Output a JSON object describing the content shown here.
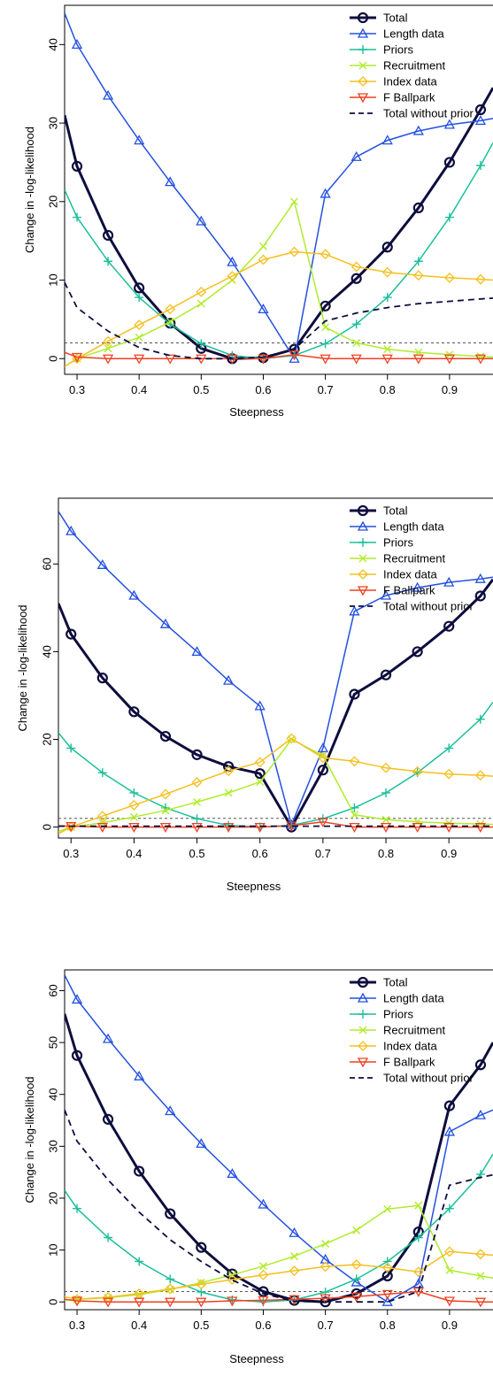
{
  "chart_data": [
    {
      "type": "line",
      "xlabel": "Steepness",
      "ylabel": "Change in -log-likelihood",
      "xlim": [
        0.28,
        0.97
      ],
      "ylim": [
        -2,
        45
      ],
      "xticks": [
        "0.3",
        "0.4",
        "0.5",
        "0.6",
        "0.7",
        "0.8",
        "0.9"
      ],
      "yticks": [
        "0",
        "10",
        "20",
        "30",
        "40"
      ],
      "reference_line": 2,
      "legend_position": "top-right",
      "x": [
        0.3,
        0.35,
        0.4,
        0.45,
        0.5,
        0.55,
        0.6,
        0.65,
        0.7,
        0.75,
        0.8,
        0.85,
        0.9,
        0.95
      ],
      "series": [
        {
          "name": "Total",
          "color": "#0d0d3d",
          "marker": "circle",
          "x0": 0.28,
          "y0": 31,
          "values": [
            24.5,
            15.7,
            9.0,
            4.5,
            1.3,
            0.0,
            0.1,
            1.2,
            6.7,
            10.2,
            14.2,
            19.2,
            25.0,
            31.7
          ],
          "x1": 0.97,
          "y1": 34.5
        },
        {
          "name": "Length data",
          "color": "#2450e0",
          "marker": "triangle-up",
          "x0": 0.28,
          "y0": 44,
          "values": [
            40.0,
            33.5,
            27.8,
            22.5,
            17.5,
            12.3,
            6.3,
            0.0,
            21.0,
            25.7,
            27.8,
            29.0,
            29.8,
            30.3
          ],
          "x1": 0.97,
          "y1": 30.6
        },
        {
          "name": "Priors",
          "color": "#1abf9a",
          "marker": "plus",
          "x0": 0.28,
          "y0": 21.5,
          "values": [
            18.0,
            12.4,
            7.8,
            4.4,
            1.9,
            0.4,
            0.0,
            0.4,
            1.9,
            4.4,
            7.8,
            12.4,
            18.0,
            24.6
          ],
          "x1": 0.97,
          "y1": 27.5
        },
        {
          "name": "Recruitment",
          "color": "#b0ec2c",
          "marker": "x",
          "x0": 0.28,
          "y0": -1.0,
          "values": [
            0.0,
            1.3,
            2.7,
            4.7,
            7.0,
            10.0,
            14.3,
            20.0,
            4.0,
            2.0,
            1.2,
            0.8,
            0.5,
            0.3
          ],
          "x1": 0.97,
          "y1": 0.2
        },
        {
          "name": "Index data",
          "color": "#f5bf1e",
          "marker": "diamond",
          "x0": 0.28,
          "y0": -1.0,
          "values": [
            0.0,
            2.2,
            4.3,
            6.3,
            8.5,
            10.5,
            12.6,
            13.6,
            13.3,
            11.7,
            11.0,
            10.6,
            10.3,
            10.1
          ],
          "x1": 0.97,
          "y1": 10.0
        },
        {
          "name": "F Ballpark",
          "color": "#ef4122",
          "marker": "triangle-down",
          "x0": 0.28,
          "y0": 0.8,
          "values": [
            0.2,
            0.0,
            0.0,
            0.0,
            0.0,
            0.0,
            0.0,
            0.5,
            0.0,
            0.0,
            0.0,
            0.0,
            0.0,
            0.0
          ],
          "x1": 0.97,
          "y1": 0.0
        },
        {
          "name": "Total without prior",
          "color": "#0d0d3d",
          "dashed": true,
          "x0": 0.28,
          "y0": 9.7,
          "values": [
            6.5,
            3.5,
            1.4,
            0.4,
            0.0,
            0.0,
            0.2,
            1.2,
            4.8,
            5.8,
            6.5,
            7.0,
            7.3,
            7.6
          ],
          "x1": 0.97,
          "y1": 7.7
        }
      ]
    },
    {
      "type": "line",
      "xlabel": "Steepness",
      "ylabel": "Change in -log-likelihood",
      "xlim": [
        0.28,
        0.97
      ],
      "ylim": [
        -2.5,
        75
      ],
      "xticks": [
        "0.3",
        "0.4",
        "0.5",
        "0.6",
        "0.7",
        "0.8",
        "0.9"
      ],
      "yticks": [
        "0",
        "20",
        "40",
        "60"
      ],
      "reference_line": 2,
      "legend_position": "top-right",
      "x": [
        0.3,
        0.35,
        0.4,
        0.45,
        0.5,
        0.55,
        0.6,
        0.65,
        0.7,
        0.75,
        0.8,
        0.85,
        0.9,
        0.95
      ],
      "series": [
        {
          "name": "Total",
          "color": "#0d0d3d",
          "marker": "circle",
          "x0": 0.28,
          "y0": 51,
          "values": [
            44.0,
            34.0,
            26.3,
            20.7,
            16.5,
            13.8,
            12.2,
            0.0,
            13.0,
            30.3,
            34.7,
            40.0,
            45.8,
            52.7
          ],
          "x1": 0.97,
          "y1": 56.5
        },
        {
          "name": "Length data",
          "color": "#2450e0",
          "marker": "triangle-up",
          "x0": 0.28,
          "y0": 72,
          "values": [
            67.5,
            59.8,
            52.8,
            46.3,
            40.0,
            33.4,
            27.6,
            0.5,
            18.0,
            49.2,
            52.8,
            54.6,
            55.8,
            56.6
          ],
          "x1": 0.97,
          "y1": 57.0
        },
        {
          "name": "Priors",
          "color": "#1abf9a",
          "marker": "plus",
          "x0": 0.28,
          "y0": 21.5,
          "values": [
            18.0,
            12.4,
            7.8,
            4.4,
            1.9,
            0.4,
            0.0,
            0.4,
            1.9,
            4.4,
            7.8,
            12.4,
            18.0,
            24.6
          ],
          "x1": 0.97,
          "y1": 28.5
        },
        {
          "name": "Recruitment",
          "color": "#b0ec2c",
          "marker": "x",
          "x0": 0.28,
          "y0": -1.0,
          "values": [
            0.0,
            1.0,
            2.3,
            3.8,
            5.7,
            7.8,
            10.3,
            20.0,
            16.3,
            2.8,
            1.7,
            1.2,
            0.9,
            0.7
          ],
          "x1": 0.97,
          "y1": 0.6
        },
        {
          "name": "Index data",
          "color": "#f5bf1e",
          "marker": "diamond",
          "x0": 0.28,
          "y0": -1.5,
          "values": [
            0.0,
            2.5,
            5.0,
            7.5,
            10.2,
            12.8,
            14.8,
            20.2,
            15.8,
            15.0,
            13.5,
            12.7,
            12.1,
            11.8
          ],
          "x1": 0.97,
          "y1": 11.6
        },
        {
          "name": "F Ballpark",
          "color": "#ef4122",
          "marker": "triangle-down",
          "x0": 0.28,
          "y0": 0.3,
          "values": [
            0.2,
            0.0,
            0.0,
            0.0,
            0.0,
            0.0,
            0.0,
            0.3,
            1.2,
            0.0,
            0.0,
            0.0,
            0.0,
            0.0
          ],
          "x1": 0.97,
          "y1": 0.0
        },
        {
          "name": "Total without prior",
          "color": "#0d0d3d",
          "dashed": true,
          "x0": 0.28,
          "y0": 0.2,
          "values": [
            0.2,
            0.2,
            0.2,
            0.2,
            0.2,
            0.2,
            0.2,
            0.2,
            0.2,
            0.2,
            0.2,
            0.2,
            0.2,
            0.2
          ],
          "x1": 0.97,
          "y1": 0.2
        }
      ]
    },
    {
      "type": "line",
      "xlabel": "Steepness",
      "ylabel": "Change in -log-likelihood",
      "xlim": [
        0.28,
        0.97
      ],
      "ylim": [
        -1.5,
        64
      ],
      "xticks": [
        "0.3",
        "0.4",
        "0.5",
        "0.6",
        "0.7",
        "0.8",
        "0.9"
      ],
      "yticks": [
        "0",
        "10",
        "20",
        "30",
        "40",
        "50",
        "60"
      ],
      "reference_line": 2,
      "legend_position": "top-right",
      "x": [
        0.3,
        0.35,
        0.4,
        0.45,
        0.5,
        0.55,
        0.6,
        0.65,
        0.7,
        0.75,
        0.8,
        0.85,
        0.9,
        0.95
      ],
      "series": [
        {
          "name": "Total",
          "color": "#0d0d3d",
          "marker": "circle",
          "x0": 0.28,
          "y0": 55.5,
          "values": [
            47.5,
            35.2,
            25.2,
            17.0,
            10.5,
            5.4,
            2.0,
            0.3,
            0.0,
            1.6,
            5.0,
            13.5,
            37.8,
            45.7
          ],
          "x1": 0.97,
          "y1": 50.0
        },
        {
          "name": "Length data",
          "color": "#2450e0",
          "marker": "triangle-up",
          "x0": 0.28,
          "y0": 63,
          "values": [
            58.3,
            50.7,
            43.5,
            36.8,
            30.5,
            24.7,
            18.8,
            13.3,
            8.2,
            3.8,
            0.0,
            3.5,
            32.8,
            36.0
          ],
          "x1": 0.97,
          "y1": 37.0
        },
        {
          "name": "Priors",
          "color": "#1abf9a",
          "marker": "plus",
          "x0": 0.28,
          "y0": 21.5,
          "values": [
            18.0,
            12.4,
            7.8,
            4.4,
            1.9,
            0.4,
            0.0,
            0.4,
            1.9,
            4.4,
            7.8,
            12.4,
            18.0,
            24.6
          ],
          "x1": 0.97,
          "y1": 28.5
        },
        {
          "name": "Recruitment",
          "color": "#b0ec2c",
          "marker": "x",
          "x0": 0.28,
          "y0": 0.3,
          "values": [
            0.5,
            0.8,
            1.4,
            2.4,
            3.7,
            5.2,
            6.9,
            8.8,
            11.2,
            13.8,
            17.9,
            18.6,
            6.1,
            5.0
          ],
          "x1": 0.97,
          "y1": 4.6
        },
        {
          "name": "Index data",
          "color": "#f5bf1e",
          "marker": "diamond",
          "x0": 0.28,
          "y0": 1.0,
          "values": [
            0.5,
            0.9,
            1.6,
            2.5,
            3.4,
            4.3,
            5.2,
            6.0,
            6.8,
            7.2,
            6.6,
            5.8,
            9.7,
            9.2
          ],
          "x1": 0.97,
          "y1": 9.0
        },
        {
          "name": "F Ballpark",
          "color": "#ef4122",
          "marker": "triangle-down",
          "x0": 0.28,
          "y0": 0.5,
          "values": [
            0.2,
            0.0,
            0.0,
            0.0,
            0.0,
            0.2,
            0.3,
            0.5,
            0.7,
            1.0,
            1.5,
            2.0,
            0.2,
            0.0
          ],
          "x1": 0.97,
          "y1": 0.0
        },
        {
          "name": "Total without prior",
          "color": "#0d0d3d",
          "dashed": true,
          "x0": 0.28,
          "y0": 37,
          "values": [
            31.0,
            23.5,
            17.3,
            12.0,
            7.8,
            4.2,
            1.6,
            0.1,
            0.0,
            0.0,
            0.0,
            2.0,
            22.5,
            24.0
          ],
          "x1": 0.97,
          "y1": 24.5
        }
      ]
    }
  ]
}
